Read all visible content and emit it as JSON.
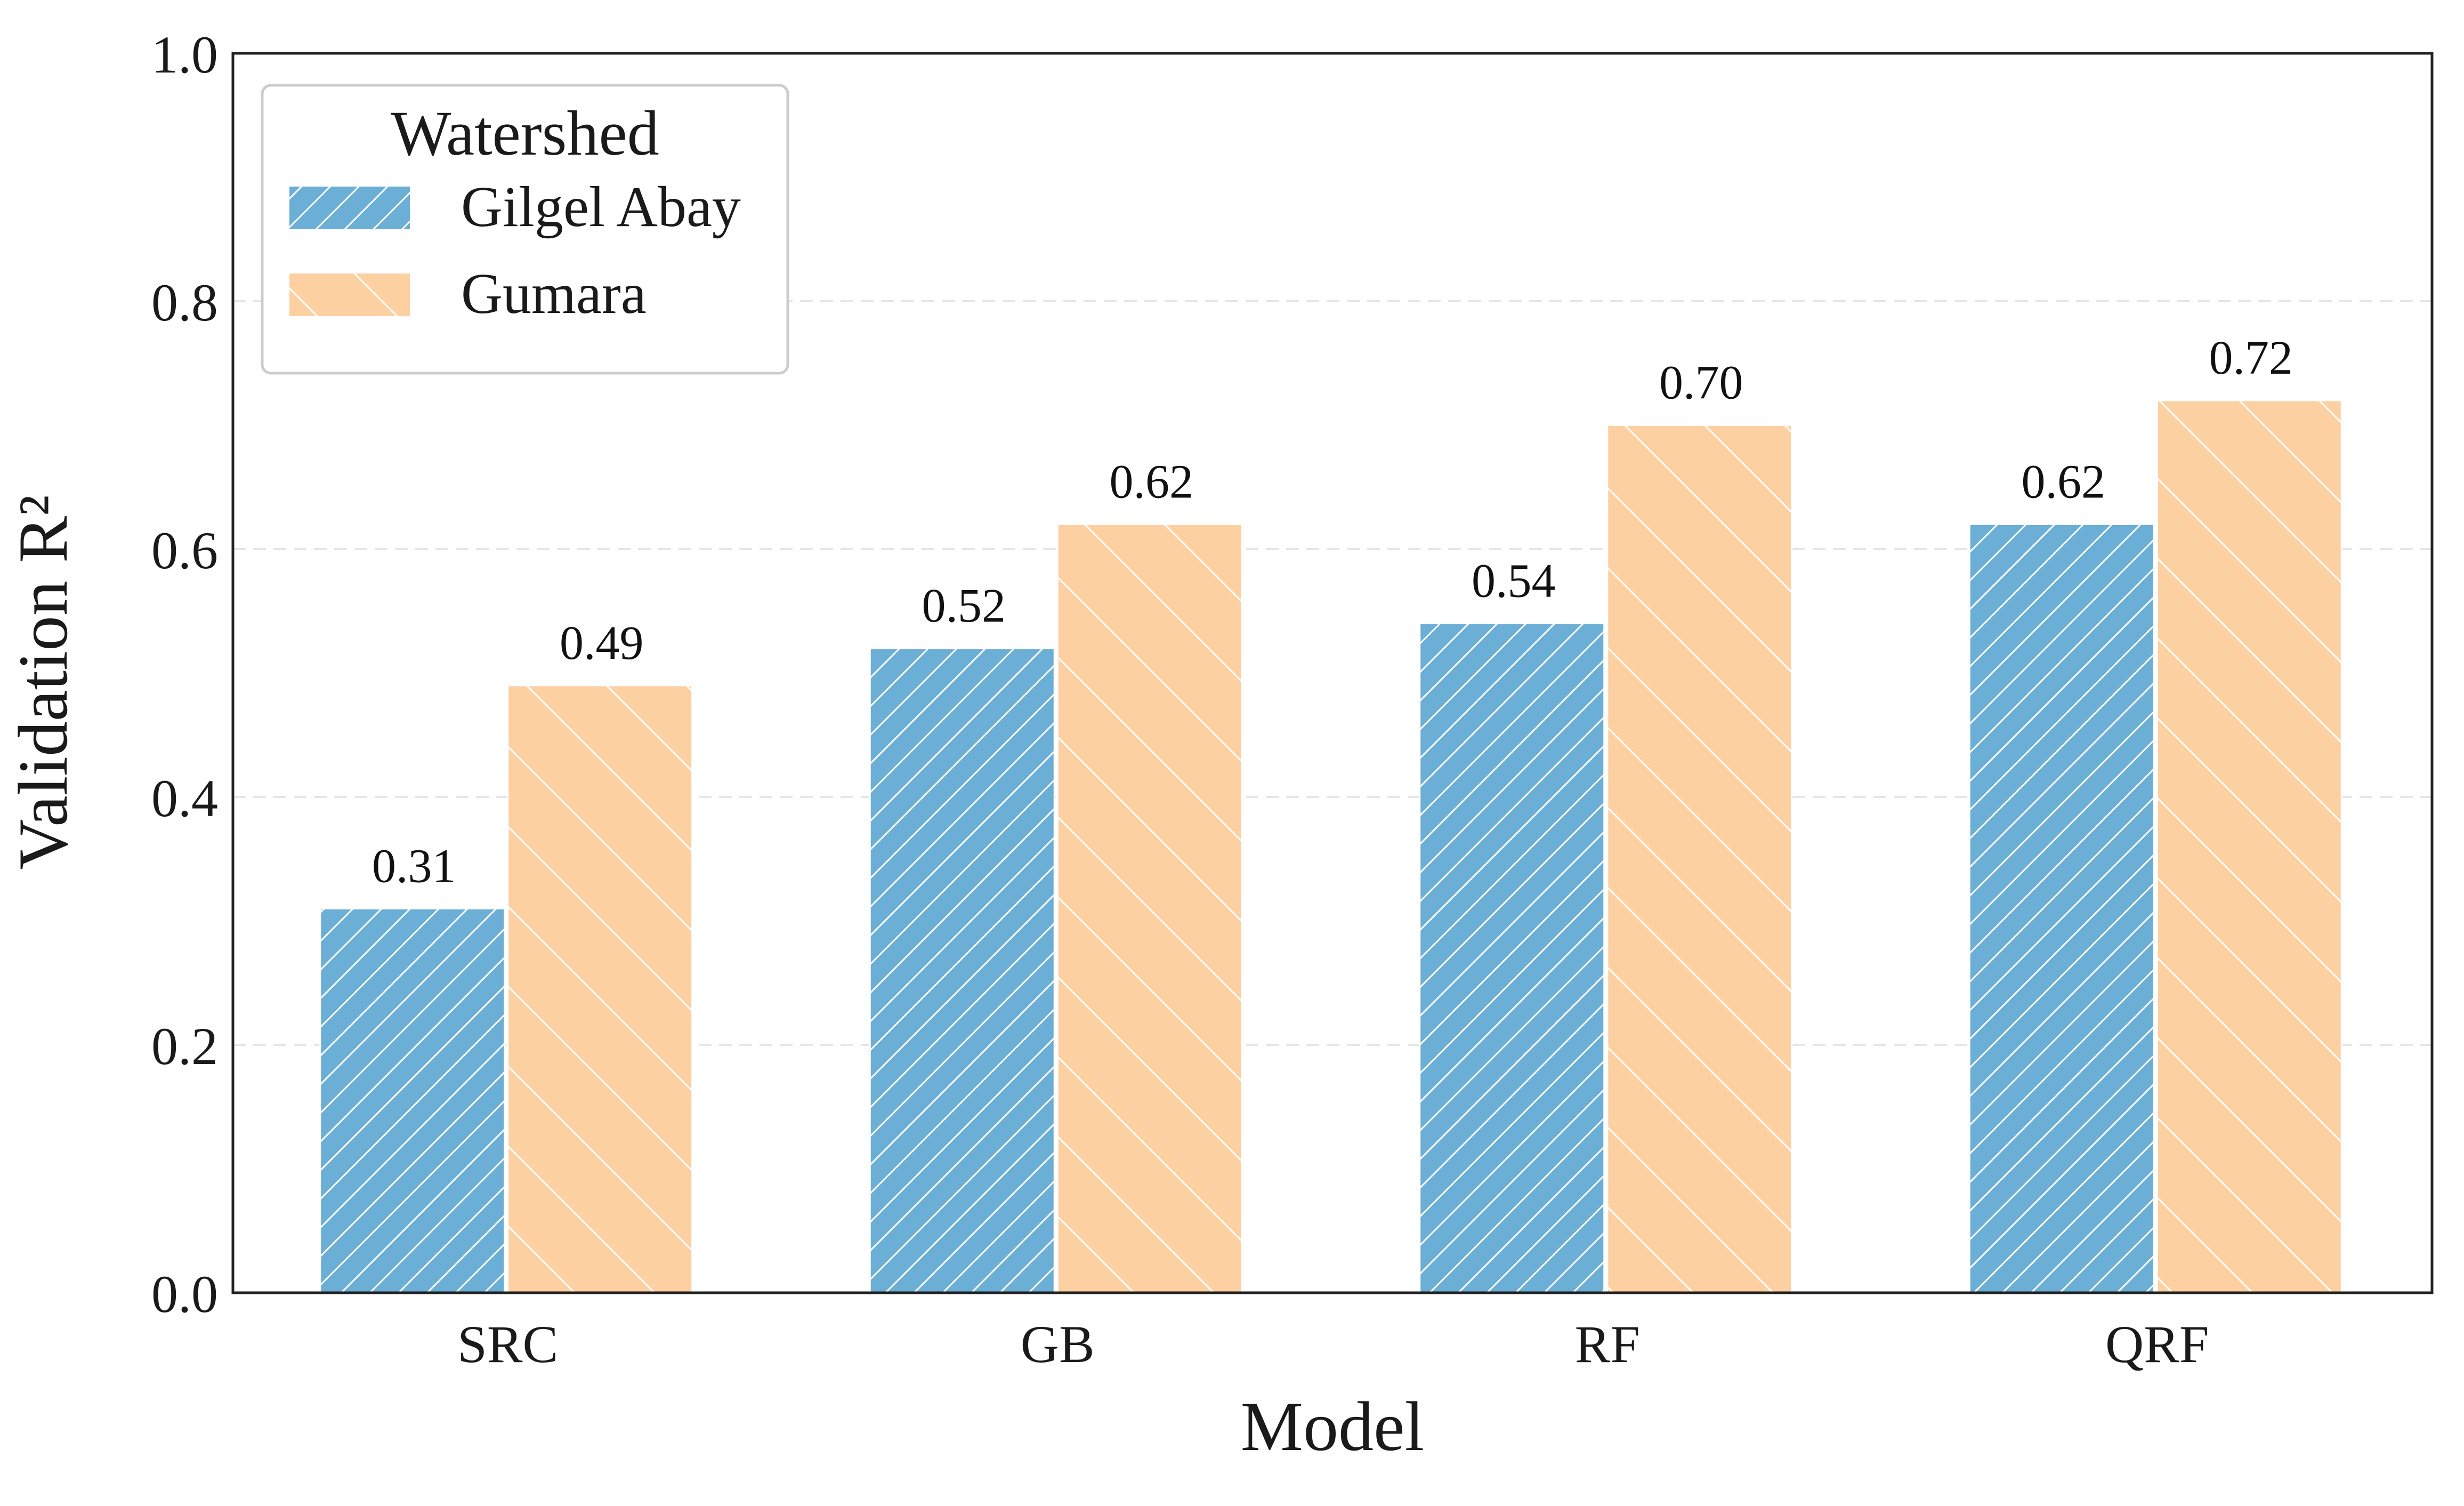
{
  "chart_data": {
    "type": "bar",
    "xlabel": "Model",
    "ylabel": "Validation R²",
    "categories": [
      "SRC",
      "GB",
      "RF",
      "QRF"
    ],
    "series": [
      {
        "name": "Gilgel Abay",
        "values": [
          0.31,
          0.52,
          0.54,
          0.62
        ],
        "labels": [
          "0.31",
          "0.52",
          "0.54",
          "0.62"
        ],
        "color": "#6baed6",
        "hatch": "forward-diagonal-dense"
      },
      {
        "name": "Gumara",
        "values": [
          0.49,
          0.62,
          0.7,
          0.72
        ],
        "labels": [
          "0.49",
          "0.62",
          "0.70",
          "0.72"
        ],
        "color": "#fdd0a2",
        "hatch": "backward-diagonal-sparse"
      }
    ],
    "ylim": [
      0.0,
      1.0
    ],
    "yticks": [
      0.0,
      0.2,
      0.4,
      0.6,
      0.8,
      1.0
    ],
    "ytick_labels": [
      "0.0",
      "0.2",
      "0.4",
      "0.6",
      "0.8",
      "1.0"
    ],
    "legend": {
      "title": "Watershed",
      "placement": "top-left"
    },
    "grid": {
      "y": true,
      "x": false,
      "style": "dashed"
    },
    "colors": {
      "axis": "#222222",
      "grid": "#e6e6e6",
      "hatch": "#ffffff",
      "text": "#1a1a1a"
    }
  }
}
